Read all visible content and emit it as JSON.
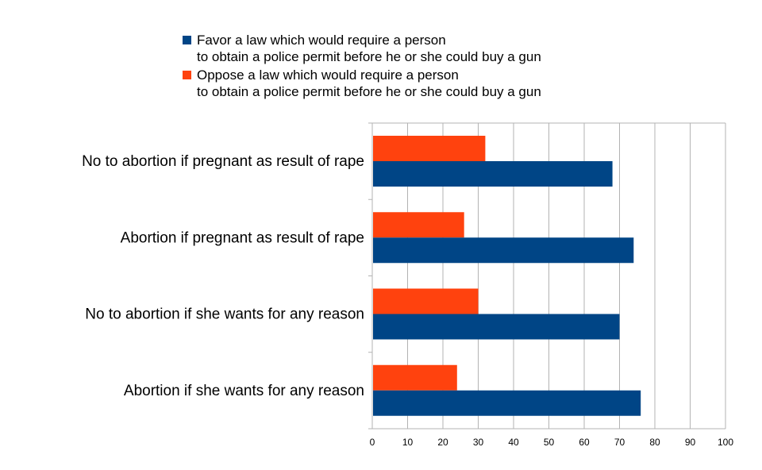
{
  "chart_data": {
    "type": "bar",
    "orientation": "horizontal",
    "categories": [
      "No to abortion if pregnant as result of rape",
      "Abortion if pregnant as result of rape",
      "No to abortion if she wants for any reason",
      "Abortion if she wants for any reason"
    ],
    "series": [
      {
        "name_lines": [
          "Favor a law which would require a person",
          "to obtain a police permit before he or she could buy a gun"
        ],
        "color": "#004586",
        "values": [
          68,
          74,
          70,
          76
        ]
      },
      {
        "name_lines": [
          "Oppose a law which would require a person",
          "to obtain a police permit before he or she could buy a gun"
        ],
        "color": "#ff420e",
        "values": [
          32,
          26,
          30,
          24
        ]
      }
    ],
    "xlim": [
      0,
      100
    ],
    "xticks": [
      "0",
      "10",
      "20",
      "30",
      "40",
      "50",
      "60",
      "70",
      "80",
      "90",
      "100"
    ],
    "title": "",
    "xlabel": "",
    "ylabel": "",
    "grid": "vertical",
    "legend_position": "top"
  }
}
